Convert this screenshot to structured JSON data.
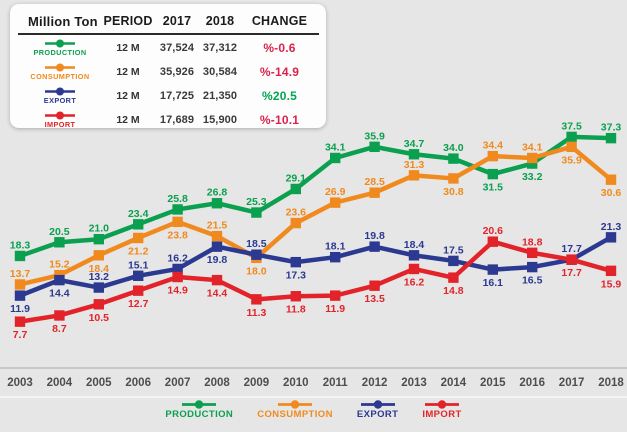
{
  "table": {
    "headers": [
      "Million Ton",
      "PERIOD",
      "2017",
      "2018",
      "CHANGE"
    ],
    "rows": [
      {
        "label": "PRODUCTION",
        "color": "#0aa04f",
        "period": "12 M",
        "y2017": "37,524",
        "y2018": "37,312",
        "change": "%-0.6",
        "change_color": "#d9234d"
      },
      {
        "label": "CONSUMPTION",
        "color": "#f08a1e",
        "period": "12 M",
        "y2017": "35,926",
        "y2018": "30,584",
        "change": "%-14.9",
        "change_color": "#d9234d"
      },
      {
        "label": "EXPORT",
        "color": "#2b3990",
        "period": "12 M",
        "y2017": "17,725",
        "y2018": "21,350",
        "change": "%20.5",
        "change_color": "#00a551"
      },
      {
        "label": "IMPORT",
        "color": "#e2242a",
        "period": "12 M",
        "y2017": "17,689",
        "y2018": "15,900",
        "change": "%-10.1",
        "change_color": "#d9234d"
      }
    ]
  },
  "chart_data": {
    "type": "line",
    "title": "",
    "xlabel": "",
    "ylabel": "Million Ton",
    "x": [
      "2003",
      "2004",
      "2005",
      "2006",
      "2007",
      "2008",
      "2009",
      "2010",
      "2011",
      "2012",
      "2013",
      "2014",
      "2015",
      "2016",
      "2017",
      "2018"
    ],
    "ylim": [
      7,
      38
    ],
    "grid": false,
    "y_axis_visible": false,
    "legend_position": "bottom",
    "series": [
      {
        "name": "PRODUCTION",
        "color": "#0aa04f",
        "values": [
          18.3,
          20.5,
          21.0,
          23.4,
          25.8,
          26.8,
          25.3,
          29.1,
          34.1,
          35.9,
          34.7,
          34.0,
          31.5,
          33.2,
          37.5,
          37.3
        ],
        "label_positions": [
          "a",
          "a",
          "a",
          "a",
          "a",
          "a",
          "a",
          "a",
          "a",
          "a",
          "a",
          "a",
          "b",
          "b",
          "a",
          "a"
        ]
      },
      {
        "name": "CONSUMPTION",
        "color": "#f08a1e",
        "values": [
          13.7,
          15.2,
          18.4,
          21.2,
          23.8,
          21.5,
          18.0,
          23.6,
          26.9,
          28.5,
          31.3,
          30.8,
          34.4,
          34.1,
          35.9,
          30.6
        ],
        "label_positions": [
          "a",
          "a",
          "b",
          "b",
          "b",
          "a",
          "b",
          "a",
          "a",
          "a",
          "a",
          "b",
          "a",
          "a",
          "b",
          "b"
        ]
      },
      {
        "name": "EXPORT",
        "color": "#2b3990",
        "values": [
          11.9,
          14.4,
          13.2,
          15.1,
          16.2,
          19.8,
          18.5,
          17.3,
          18.1,
          19.8,
          18.4,
          17.5,
          16.1,
          16.5,
          17.7,
          21.3
        ],
        "label_positions": [
          "b",
          "b",
          "a",
          "a",
          "a",
          "b",
          "a",
          "b",
          "a",
          "a",
          "a",
          "a",
          "b",
          "b",
          "a",
          "a"
        ]
      },
      {
        "name": "IMPORT",
        "color": "#e2242a",
        "values": [
          7.7,
          8.7,
          10.5,
          12.7,
          14.9,
          14.4,
          11.3,
          11.8,
          11.9,
          13.5,
          16.2,
          14.8,
          20.6,
          18.8,
          17.7,
          15.9
        ],
        "label_positions": [
          "b",
          "b",
          "b",
          "b",
          "b",
          "b",
          "b",
          "b",
          "b",
          "b",
          "b",
          "b",
          "a",
          "a",
          "b",
          "b"
        ]
      }
    ]
  },
  "legend": {
    "items": [
      {
        "label": "PRODUCTION",
        "color": "#0aa04f"
      },
      {
        "label": "CONSUMPTION",
        "color": "#f08a1e"
      },
      {
        "label": "EXPORT",
        "color": "#2b3990"
      },
      {
        "label": "IMPORT",
        "color": "#e2242a"
      }
    ]
  },
  "axis": {
    "line_color": "#bdbdbd",
    "tick_color": "#4e4e4e"
  }
}
